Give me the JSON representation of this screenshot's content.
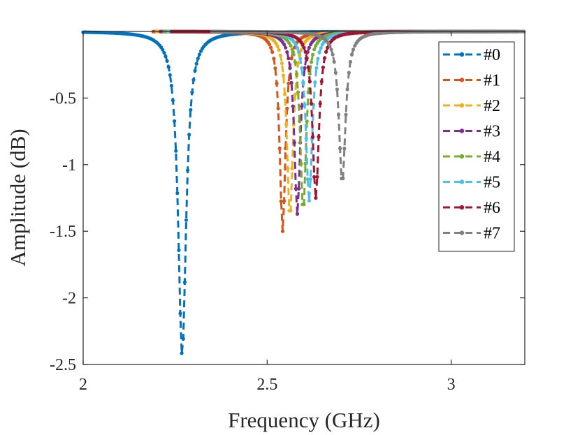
{
  "chart_data": {
    "type": "line",
    "title": "",
    "xlabel": "Frequency (GHz)",
    "ylabel": "Amplitude (dB)",
    "xlim": [
      2.0,
      3.2
    ],
    "ylim": [
      -2.5,
      0.0
    ],
    "xticks": [
      2.0,
      2.5,
      3.0
    ],
    "xtick_labels": [
      "2",
      "2.5",
      "3"
    ],
    "yticks": [
      -2.5,
      -2.0,
      -1.5,
      -1.0,
      -0.5
    ],
    "ytick_labels": [
      "-2.5",
      "-2",
      "-1.5",
      "-1",
      "-0.5"
    ],
    "grid": false,
    "legend_position": "top-right",
    "line_style": "dashed",
    "markers": "dots",
    "series": [
      {
        "name": "#0",
        "color": "#0072BD",
        "x_start": 2.0,
        "x_end": 2.92,
        "center": 2.269,
        "depth": 2.43,
        "width": 0.026
      },
      {
        "name": "#1",
        "color": "#D95319",
        "x_start": 2.19,
        "x_end": 3.0,
        "center": 2.542,
        "depth": 1.5,
        "width": 0.019
      },
      {
        "name": "#2",
        "color": "#EDB120",
        "x_start": 2.2,
        "x_end": 3.05,
        "center": 2.562,
        "depth": 1.4,
        "width": 0.02
      },
      {
        "name": "#3",
        "color": "#7E2F8E",
        "x_start": 2.21,
        "x_end": 3.1,
        "center": 2.582,
        "depth": 1.37,
        "width": 0.02
      },
      {
        "name": "#4",
        "color": "#77AC30",
        "x_start": 2.22,
        "x_end": 3.12,
        "center": 2.598,
        "depth": 1.35,
        "width": 0.02
      },
      {
        "name": "#5",
        "color": "#4DBEEE",
        "x_start": 2.23,
        "x_end": 3.15,
        "center": 2.614,
        "depth": 1.27,
        "width": 0.021
      },
      {
        "name": "#6",
        "color": "#A2142F",
        "x_start": 2.24,
        "x_end": 3.18,
        "center": 2.632,
        "depth": 1.25,
        "width": 0.021
      },
      {
        "name": "#7",
        "color": "#808080",
        "x_start": 2.35,
        "x_end": 3.2,
        "center": 2.704,
        "depth": 1.14,
        "width": 0.022
      }
    ]
  }
}
